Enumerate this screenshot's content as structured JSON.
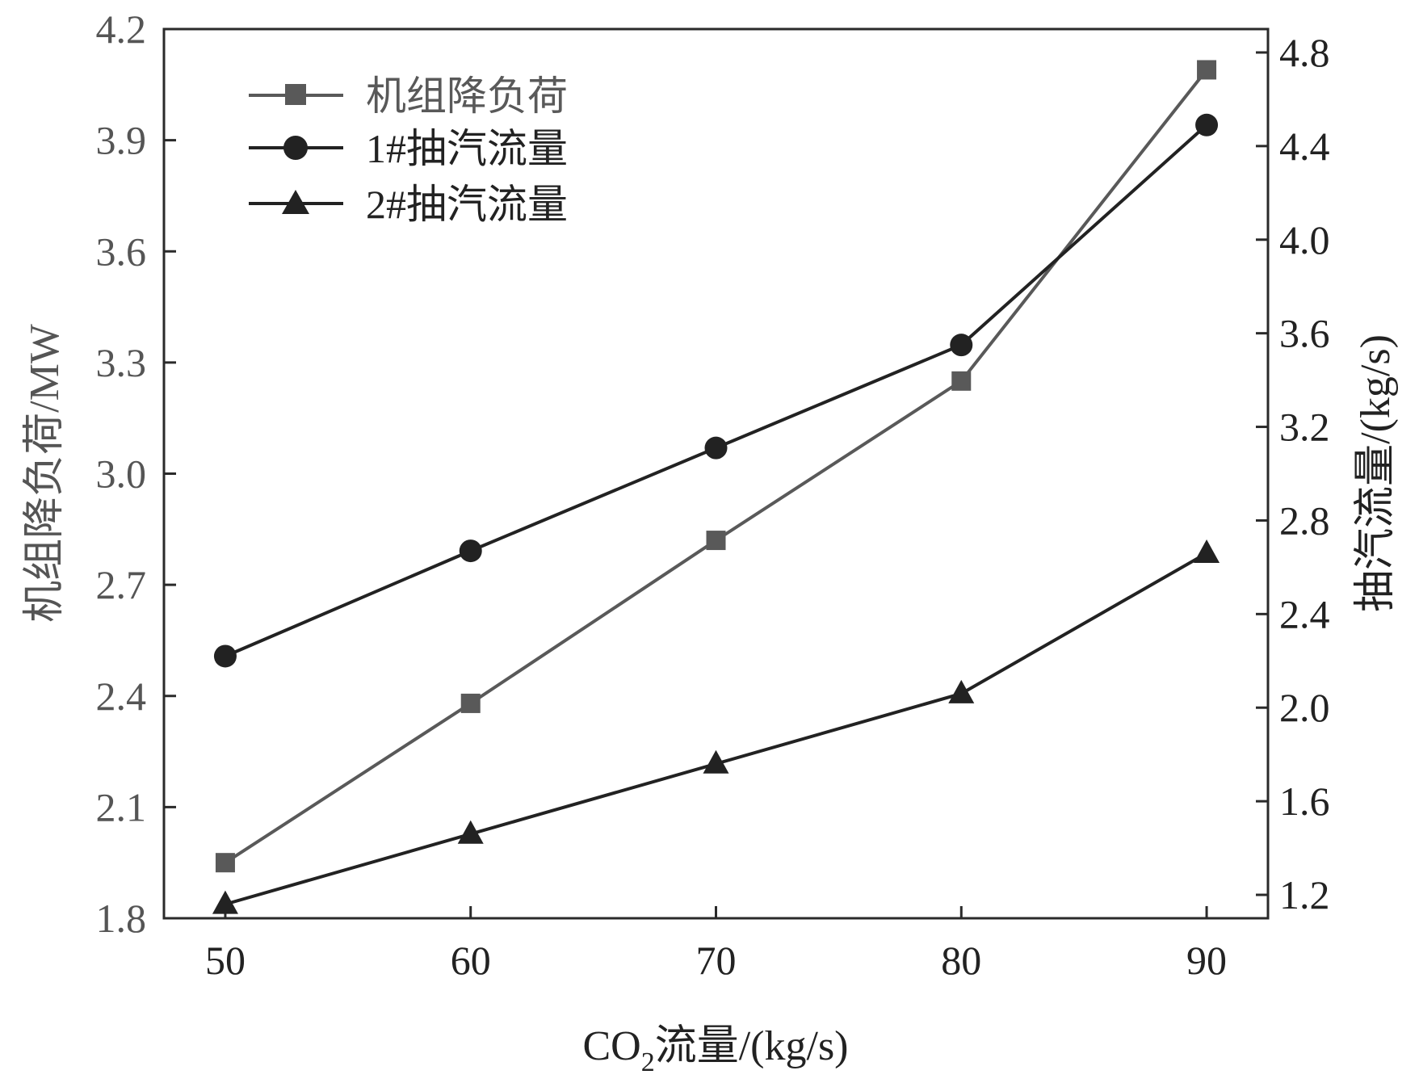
{
  "chart_data": {
    "type": "line",
    "x": [
      50,
      60,
      70,
      80,
      90
    ],
    "xticks": [
      "50",
      "60",
      "70",
      "80",
      "90"
    ],
    "xlim": [
      47.5,
      92.5
    ],
    "xlabel_main": "CO",
    "xlabel_sub": "2",
    "xlabel_rest": "流量/(kg/s)",
    "ylabel_left": "机组降负荷/MW",
    "ylabel_right": "抽汽流量/(kg/s)",
    "ylim_left": [
      1.8,
      4.2
    ],
    "ylim_right": [
      1.1,
      4.9
    ],
    "yticks_left": [
      "1.8",
      "2.1",
      "2.4",
      "2.7",
      "3.0",
      "3.3",
      "3.6",
      "3.9",
      "4.2"
    ],
    "yticks_right": [
      "1.2",
      "1.6",
      "2.0",
      "2.4",
      "2.8",
      "3.2",
      "3.6",
      "4.0",
      "4.4",
      "4.8"
    ],
    "grid": false,
    "legend_position": "top-left",
    "series": [
      {
        "name": "机组降负荷",
        "axis": "left",
        "marker": "square",
        "color": "#595959",
        "values": [
          1.95,
          2.38,
          2.82,
          3.25,
          4.09
        ]
      },
      {
        "name": "1#抽汽流量",
        "axis": "right",
        "marker": "circle",
        "color": "#222222",
        "values": [
          2.22,
          2.67,
          3.11,
          3.55,
          4.49
        ]
      },
      {
        "name": "2#抽汽流量",
        "axis": "right",
        "marker": "triangle",
        "color": "#222222",
        "values": [
          1.16,
          1.46,
          1.76,
          2.06,
          2.66
        ]
      }
    ]
  }
}
